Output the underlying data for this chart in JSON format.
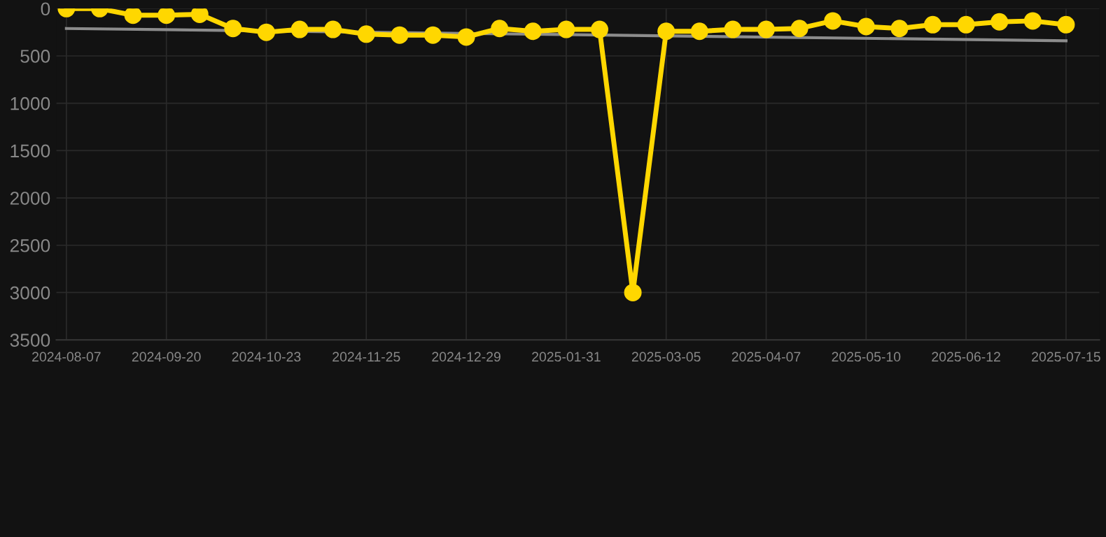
{
  "chart_data": {
    "type": "line",
    "categories": [
      "2024-08-07",
      null,
      null,
      "2024-09-20",
      null,
      null,
      "2024-10-23",
      null,
      null,
      "2024-11-25",
      null,
      null,
      "2024-12-29",
      null,
      null,
      "2025-01-31",
      null,
      null,
      "2025-03-05",
      null,
      null,
      "2025-04-07",
      null,
      null,
      "2025-05-10",
      null,
      null,
      "2025-06-12",
      null,
      null,
      "2025-07-15"
    ],
    "series": [
      {
        "color": "#ffd700",
        "marker": "circle",
        "values": [
          0,
          0,
          70,
          70,
          60,
          210,
          250,
          220,
          220,
          270,
          280,
          280,
          300,
          210,
          240,
          220,
          220,
          3000,
          240,
          240,
          220,
          220,
          210,
          130,
          190,
          210,
          170,
          170,
          140,
          130,
          170
        ]
      },
      {
        "color": "#8c8c8c",
        "marker": "none",
        "values": [
          210,
          null,
          null,
          null,
          null,
          null,
          null,
          null,
          null,
          null,
          null,
          null,
          null,
          null,
          null,
          null,
          null,
          null,
          null,
          null,
          null,
          null,
          null,
          null,
          null,
          null,
          null,
          null,
          null,
          null,
          340
        ]
      }
    ],
    "ylim": [
      3500,
      0
    ],
    "yticks": [
      0,
      500,
      1000,
      1500,
      2000,
      2500,
      3000,
      3500
    ],
    "grid": true,
    "line_style": "solid"
  }
}
